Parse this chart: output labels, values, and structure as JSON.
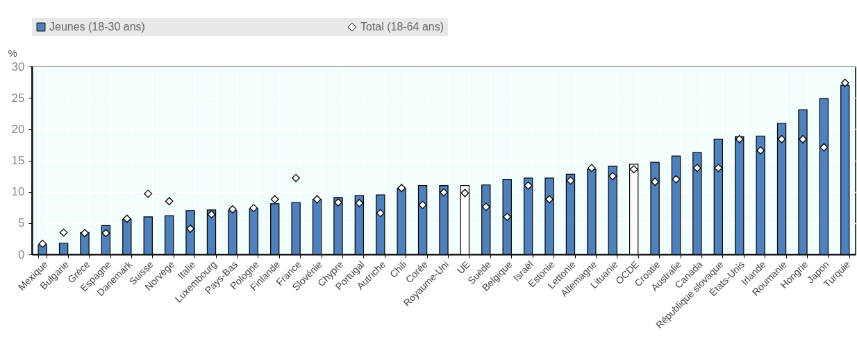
{
  "chart_data": {
    "type": "bar",
    "ylabel": "%",
    "categories": [
      "Mexique",
      "Bulgarie",
      "Grèce",
      "Espagne",
      "Danemark",
      "Suisse",
      "Norvège",
      "Italie",
      "Luxembourg",
      "Pays-Bas",
      "Pologne",
      "Finlande",
      "France",
      "Slovénie",
      "Chypre",
      "Portugal",
      "Autriche",
      "Chili",
      "Corée",
      "Royaume-Uni",
      "UE",
      "Suède",
      "Belgique",
      "Israël",
      "Estonie",
      "Lettonie",
      "Allemagne",
      "Lituanie",
      "OCDE",
      "Croatie",
      "Australie",
      "Canada",
      "République slovaque",
      "États-Unis",
      "Irlande",
      "Roumanie",
      "Hongrie",
      "Japon",
      "Turquie"
    ],
    "series": [
      {
        "name": "Jeunes (18-30 ans)",
        "color": "#4f81bd",
        "colors": [
          "#4f81bd",
          "#4f81bd",
          "#4f81bd",
          "#4f81bd",
          "#4f81bd",
          "#4f81bd",
          "#4f81bd",
          "#4f81bd",
          "#4f81bd",
          "#4f81bd",
          "#4f81bd",
          "#4f81bd",
          "#4f81bd",
          "#4f81bd",
          "#4f81bd",
          "#4f81bd",
          "#4f81bd",
          "#4f81bd",
          "#4f81bd",
          "#4f81bd",
          "#ffffff",
          "#4f81bd",
          "#4f81bd",
          "#4f81bd",
          "#4f81bd",
          "#4f81bd",
          "#4f81bd",
          "#4f81bd",
          "#ffffff",
          "#4f81bd",
          "#4f81bd",
          "#4f81bd",
          "#4f81bd",
          "#4f81bd",
          "#4f81bd",
          "#4f81bd",
          "#4f81bd",
          "#4f81bd",
          "#4f81bd"
        ],
        "values": [
          1.5,
          1.8,
          3.5,
          4.6,
          5.6,
          6.0,
          6.2,
          7.0,
          7.1,
          7.0,
          7.3,
          8.1,
          8.3,
          8.8,
          9.1,
          9.4,
          9.5,
          10.5,
          11.0,
          11.0,
          11.0,
          11.1,
          12.0,
          12.2,
          12.2,
          12.8,
          13.6,
          14.1,
          14.4,
          14.7,
          15.7,
          16.3,
          18.4,
          18.8,
          18.9,
          20.9,
          23.1,
          24.9,
          27.0
        ]
      },
      {
        "name": "Total (18-64 ans)",
        "type": "scatter",
        "marker": "diamond",
        "color": "#ffffff",
        "values": [
          1.7,
          3.5,
          3.4,
          3.4,
          5.7,
          9.7,
          8.5,
          4.1,
          6.4,
          7.2,
          7.4,
          8.8,
          12.2,
          8.8,
          8.3,
          8.2,
          6.6,
          10.6,
          7.9,
          9.9,
          9.8,
          7.6,
          6.0,
          11.0,
          8.8,
          11.8,
          13.8,
          12.5,
          13.6,
          11.6,
          12.0,
          13.8,
          13.8,
          18.4,
          16.6,
          18.4,
          18.4,
          17.1,
          27.4
        ]
      }
    ],
    "ylim": [
      0,
      30
    ],
    "yticks": [
      0,
      5,
      10,
      15,
      20,
      25,
      30
    ],
    "grid": true,
    "legend": "top"
  }
}
